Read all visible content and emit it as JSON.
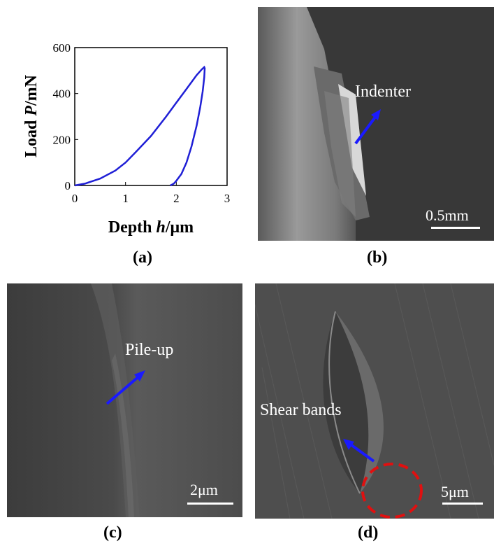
{
  "panels": {
    "a": {
      "label": "(a)",
      "chart_data": {
        "type": "line",
        "xlabel_prefix": "Depth ",
        "xlabel_var": "h",
        "xlabel_unit": "/μm",
        "ylabel_prefix": "Load ",
        "ylabel_var": "P",
        "ylabel_unit": "/mN",
        "xlim": [
          0,
          3
        ],
        "ylim": [
          0,
          600
        ],
        "xticks": [
          0,
          1,
          2,
          3
        ],
        "yticks": [
          0,
          200,
          400,
          600
        ],
        "grid": false,
        "series": [
          {
            "color": "#1f1fd6",
            "x": [
              0,
              0.2,
              0.5,
              0.8,
              1.0,
              1.2,
              1.5,
              1.8,
              2.0,
              2.2,
              2.4,
              2.5,
              2.55,
              2.56,
              2.55,
              2.52,
              2.47,
              2.4,
              2.3,
              2.2,
              2.1,
              2.0,
              1.95,
              1.9,
              1.88
            ],
            "y": [
              0,
              8,
              30,
              65,
              100,
              145,
              215,
              300,
              360,
              420,
              480,
              505,
              515,
              510,
              470,
              410,
              340,
              260,
              170,
              100,
              50,
              20,
              8,
              2,
              0
            ]
          }
        ]
      }
    },
    "b": {
      "label": "(b)",
      "annotation": "Indenter",
      "scale": "0.5mm"
    },
    "c": {
      "label": "(c)",
      "annotation": "Pile-up",
      "scale": "2μm"
    },
    "d": {
      "label": "(d)",
      "annotation": "Shear bands",
      "scale": "5μm"
    },
    "colors": {
      "arrow": "#1a1aff",
      "circle": "#e01010"
    }
  }
}
